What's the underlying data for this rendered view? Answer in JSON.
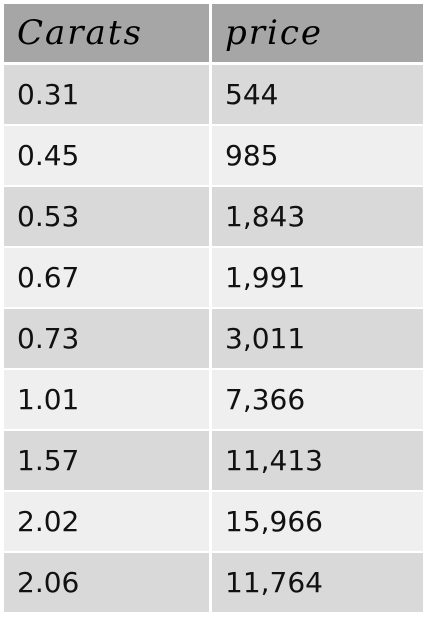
{
  "table": {
    "headers": [
      "Carats",
      "price"
    ],
    "rows": [
      {
        "carats": "0.31",
        "price": "544"
      },
      {
        "carats": "0.45",
        "price": "985"
      },
      {
        "carats": "0.53",
        "price": "1,843"
      },
      {
        "carats": "0.67",
        "price": "1,991"
      },
      {
        "carats": "0.73",
        "price": "3,011"
      },
      {
        "carats": "1.01",
        "price": "7,366"
      },
      {
        "carats": "1.57",
        "price": "11,413"
      },
      {
        "carats": "2.02",
        "price": "15,966"
      },
      {
        "carats": "2.06",
        "price": "11,764"
      }
    ]
  }
}
